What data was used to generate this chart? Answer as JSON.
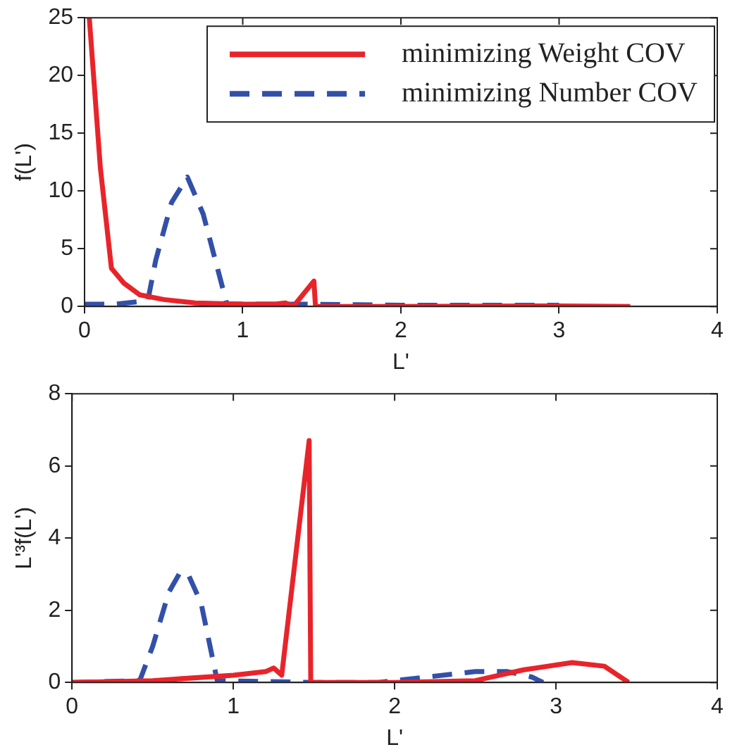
{
  "chart_data": [
    {
      "type": "line",
      "xlabel": "L'",
      "ylabel": "f(L')",
      "xlim": [
        0,
        4
      ],
      "xticks": [
        0,
        1,
        2,
        3,
        4
      ],
      "ylim": [
        0,
        25
      ],
      "yticks": [
        0,
        5,
        10,
        15,
        20,
        25
      ],
      "legend": "top right",
      "grid": false,
      "marker": "none",
      "series": [
        {
          "name": "minimizing Weight COV",
          "color": "#e8242a",
          "line_style": "solid",
          "x": [
            0.03,
            0.1,
            0.17,
            0.25,
            0.35,
            0.5,
            0.7,
            1.0,
            1.2,
            1.27,
            1.32,
            1.45,
            1.46,
            2,
            3,
            3.45
          ],
          "values": [
            25,
            12,
            3.3,
            2,
            1,
            0.6,
            0.3,
            0.2,
            0.2,
            0.3,
            0,
            2.2,
            0,
            0,
            0.05,
            0
          ]
        },
        {
          "name": "minimizing Number COV",
          "color": "#3350a8",
          "line_style": "dashed",
          "x": [
            0,
            0.2,
            0.4,
            0.45,
            0.55,
            0.65,
            0.75,
            0.9,
            1.4,
            2,
            3
          ],
          "values": [
            0.2,
            0.2,
            0.5,
            4,
            9,
            11.2,
            8,
            0.2,
            0.2,
            0.1,
            0.1
          ]
        }
      ]
    },
    {
      "type": "line",
      "xlabel": "L'",
      "ylabel": "L'³f(L')",
      "xlim": [
        0,
        4
      ],
      "xticks": [
        0,
        1,
        2,
        3,
        4
      ],
      "ylim": [
        0,
        8
      ],
      "yticks": [
        0,
        2,
        4,
        6,
        8
      ],
      "grid": false,
      "marker": "none",
      "series": [
        {
          "color": "#e8242a",
          "line_style": "solid",
          "x": [
            0,
            0.5,
            1.0,
            1.2,
            1.25,
            1.3,
            1.47,
            1.48,
            2,
            2.5,
            2.8,
            3.1,
            3.3,
            3.45
          ],
          "values": [
            0,
            0.05,
            0.2,
            0.3,
            0.4,
            0.2,
            6.7,
            0,
            0,
            0.05,
            0.35,
            0.55,
            0.45,
            0
          ]
        },
        {
          "color": "#3350a8",
          "line_style": "dashed",
          "x": [
            0,
            0.42,
            0.5,
            0.6,
            0.67,
            0.72,
            0.8,
            0.9,
            1.5,
            1.9,
            2.2,
            2.5,
            2.7,
            2.85,
            2.92
          ],
          "values": [
            0,
            0.05,
            1,
            2.5,
            3.05,
            3,
            2.2,
            0.05,
            0,
            0,
            0.15,
            0.3,
            0.3,
            0.15,
            0
          ]
        }
      ]
    }
  ]
}
